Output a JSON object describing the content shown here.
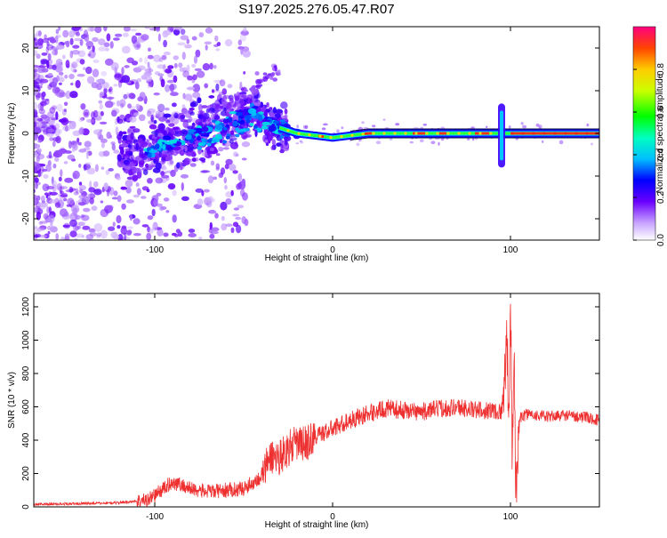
{
  "title": "S197.2025.276.05.47.R07",
  "colors": {
    "snr_line": "#ee3030",
    "axis": "#000000",
    "background": "#ffffff"
  },
  "chart_data": [
    {
      "type": "heatmap",
      "name": "spectrogram",
      "xlabel": "Height of straight line (km)",
      "ylabel": "Frequency (Hz)",
      "xlim": [
        -168,
        150
      ],
      "ylim": [
        -25,
        25
      ],
      "x_ticks": [
        -100,
        0,
        100
      ],
      "x_tick_labels": [
        "-100",
        "0",
        "100"
      ],
      "y_ticks": [
        -20,
        -10,
        0,
        10,
        20
      ],
      "y_tick_labels": [
        "-20",
        "-10",
        "0",
        "10",
        "20"
      ],
      "colorbar": {
        "label": "Normalized spectral amplitude",
        "range": [
          0.0,
          1.0
        ],
        "ticks": [
          0.0,
          0.2,
          0.4,
          0.6,
          0.8
        ],
        "tick_labels": [
          "0.0",
          "0.2",
          "0.4",
          "0.6",
          "0.8"
        ]
      },
      "ridge": [
        {
          "x": -105,
          "f": -5
        },
        {
          "x": -95,
          "f": -3
        },
        {
          "x": -80,
          "f": -1
        },
        {
          "x": -70,
          "f": 1
        },
        {
          "x": -55,
          "f": 3
        },
        {
          "x": -45,
          "f": 5
        },
        {
          "x": -35,
          "f": 2
        },
        {
          "x": -20,
          "f": 0
        },
        {
          "x": 0,
          "f": -1
        },
        {
          "x": 20,
          "f": 0
        },
        {
          "x": 90,
          "f": 0
        },
        {
          "x": 150,
          "f": 0
        }
      ],
      "spike": {
        "x": 95,
        "f_min": -8,
        "f_max": 7
      }
    },
    {
      "type": "line",
      "name": "snr",
      "xlabel": "Height of straight line (km)",
      "ylabel": "SNR (10 * v/v)",
      "xlim": [
        -168,
        150
      ],
      "ylim": [
        0,
        1280
      ],
      "x_ticks": [
        -100,
        0,
        100
      ],
      "x_tick_labels": [
        "-100",
        "0",
        "100"
      ],
      "y_ticks": [
        0,
        200,
        400,
        600,
        800,
        1000,
        1200
      ],
      "y_tick_labels": [
        "0",
        "200",
        "400",
        "600",
        "800",
        "1000",
        "1200"
      ],
      "series": [
        {
          "name": "SNR",
          "x": [
            -168,
            -140,
            -120,
            -105,
            -100,
            -90,
            -80,
            -70,
            -60,
            -50,
            -40,
            -35,
            -30,
            -25,
            -20,
            -15,
            -10,
            0,
            10,
            20,
            30,
            40,
            50,
            60,
            70,
            80,
            90,
            95,
            97,
            98,
            99,
            100,
            101,
            102,
            103,
            105,
            110,
            120,
            130,
            140,
            150
          ],
          "values": [
            15,
            20,
            25,
            40,
            70,
            150,
            110,
            90,
            100,
            110,
            180,
            300,
            300,
            350,
            380,
            380,
            420,
            470,
            520,
            560,
            590,
            580,
            570,
            590,
            600,
            580,
            580,
            570,
            800,
            1050,
            500,
            1280,
            250,
            900,
            100,
            530,
            560,
            540,
            550,
            540,
            520
          ]
        }
      ]
    }
  ]
}
